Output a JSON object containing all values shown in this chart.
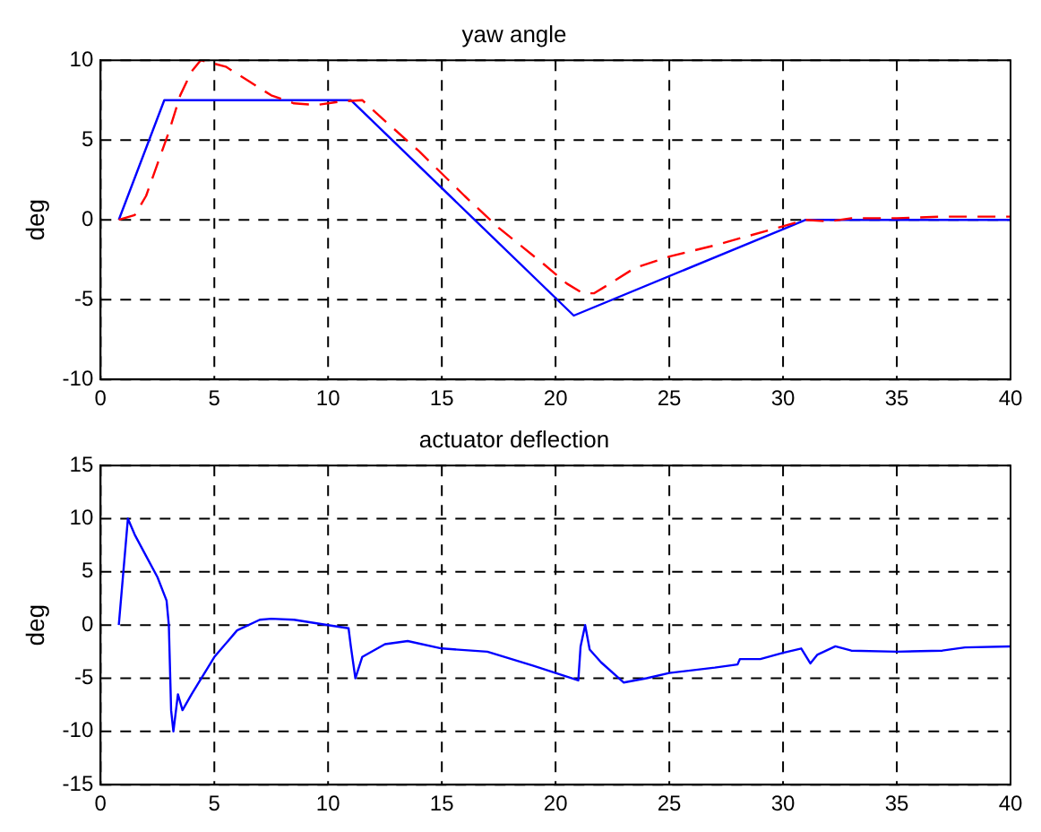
{
  "chart_data": [
    {
      "type": "line",
      "title": "yaw angle",
      "ylabel": "deg",
      "xlim": [
        0,
        40
      ],
      "xticks": [
        0,
        5,
        10,
        15,
        20,
        25,
        30,
        35,
        40
      ],
      "ylim": [
        -10,
        10
      ],
      "yticks": [
        -10,
        -5,
        0,
        5,
        10
      ],
      "grid": true,
      "legend": false,
      "marker": "none",
      "series": [
        {
          "color": "#ff0000",
          "line_style": "dashed",
          "x": [
            0.8,
            1.5,
            2,
            2.5,
            3,
            3.5,
            4,
            4.4,
            5.5,
            6.5,
            7.5,
            8.5,
            9.5,
            10.5,
            11.5,
            12.5,
            14,
            16,
            17.5,
            19.5,
            20.5,
            21.2,
            21.7,
            22.5,
            23.5,
            25,
            27,
            28.5,
            30,
            31,
            32,
            33,
            35,
            37,
            40
          ],
          "values": [
            0,
            0.3,
            1.5,
            3.5,
            5.5,
            7.8,
            9.3,
            10,
            9.6,
            8.7,
            7.8,
            7.3,
            7.2,
            7.4,
            7.5,
            6.2,
            4.3,
            1.5,
            -0.5,
            -2.8,
            -4,
            -4.6,
            -4.6,
            -3.9,
            -3,
            -2.3,
            -1.6,
            -1,
            -0.4,
            0,
            -0.1,
            0.1,
            0.1,
            0.2,
            0.2
          ]
        },
        {
          "color": "#0000ff",
          "line_style": "solid",
          "x": [
            0.8,
            2.8,
            11,
            20.8,
            31,
            40
          ],
          "values": [
            0,
            7.5,
            7.5,
            -6,
            0,
            0
          ]
        }
      ]
    },
    {
      "type": "line",
      "title": "actuator deflection",
      "ylabel": "deg",
      "xlim": [
        0,
        40
      ],
      "xticks": [
        0,
        5,
        10,
        15,
        20,
        25,
        30,
        35,
        40
      ],
      "ylim": [
        -15,
        15
      ],
      "yticks": [
        -15,
        -10,
        -5,
        0,
        5,
        10,
        15
      ],
      "grid": true,
      "legend": false,
      "marker": "none",
      "series": [
        {
          "color": "#0000ff",
          "line_style": "solid",
          "x": [
            0.8,
            1.0,
            1.2,
            1.5,
            2,
            2.5,
            2.9,
            3.0,
            3.1,
            3.2,
            3.4,
            3.6,
            4,
            5,
            6,
            7,
            7.5,
            8.5,
            10,
            10.9,
            11.0,
            11.2,
            11.5,
            12.5,
            13.5,
            15,
            17,
            19,
            21,
            21.1,
            21.3,
            21.5,
            22,
            23,
            24,
            25,
            27,
            28,
            28.1,
            29,
            30,
            30.8,
            31.2,
            31.5,
            32.3,
            33,
            35,
            37,
            38,
            40
          ],
          "values": [
            0,
            5,
            10,
            8.5,
            6.5,
            4.5,
            2.3,
            0,
            -8,
            -10,
            -6.5,
            -8,
            -6.5,
            -3,
            -0.5,
            0.5,
            0.6,
            0.5,
            0,
            -0.3,
            -2,
            -5,
            -3,
            -1.8,
            -1.5,
            -2.2,
            -2.5,
            -3.8,
            -5.2,
            -2,
            0,
            -2.3,
            -3.5,
            -5.4,
            -5,
            -4.5,
            -4,
            -3.7,
            -3.2,
            -3.2,
            -2.6,
            -2.2,
            -3.6,
            -2.8,
            -2,
            -2.4,
            -2.5,
            -2.4,
            -2.1,
            -2
          ]
        }
      ]
    }
  ]
}
